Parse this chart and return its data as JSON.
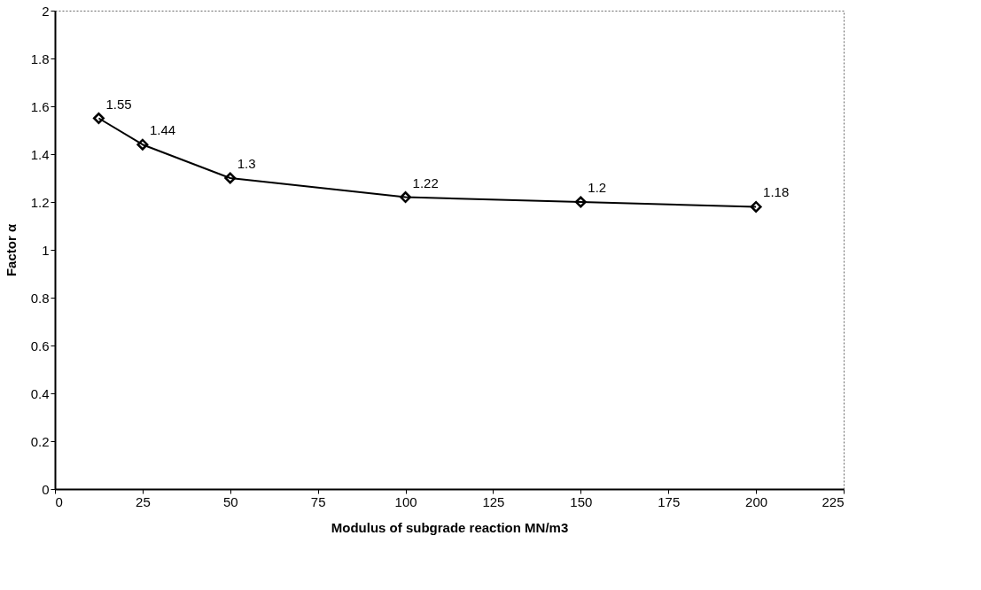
{
  "chart_data": {
    "type": "line",
    "xlabel": "Modulus of subgrade reaction MN/m3",
    "ylabel": "Factor α",
    "x": [
      12.5,
      25,
      50,
      100,
      150,
      200
    ],
    "series": [
      {
        "color": "#000000",
        "values": [
          1.55,
          1.44,
          1.3,
          1.22,
          1.2,
          1.18
        ]
      }
    ],
    "xlim": [
      0,
      225
    ],
    "xticks": [
      0,
      25,
      50,
      75,
      100,
      125,
      150,
      175,
      200,
      225
    ],
    "ylim": [
      0,
      2
    ],
    "yticks": [
      0,
      0.2,
      0.4,
      0.6,
      0.8,
      1,
      1.2,
      1.4,
      1.6,
      1.8,
      2
    ],
    "marker": "diamond",
    "data_labels": true,
    "grid": false,
    "legend": false
  }
}
